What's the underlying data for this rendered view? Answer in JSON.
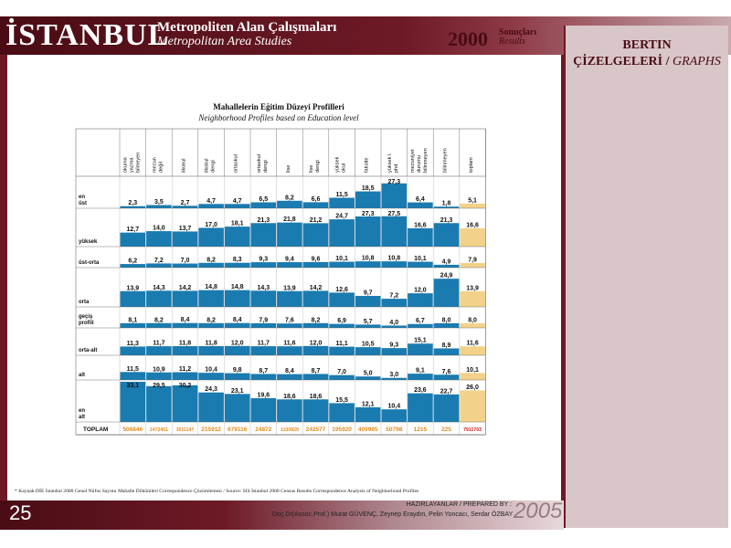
{
  "header": {
    "title": "İSTANBUL",
    "subtitle_tr": "Metropoliten Alan Çalışmaları",
    "subtitle_en": "Metropolitan Area Studies",
    "year": "2000",
    "results_tr": "Sonuçları",
    "results_en": "Results"
  },
  "side": {
    "title_line1": "BERTIN",
    "title_line2_tr": "ÇİZELGELERİ /",
    "title_line2_en": "GRAPHS"
  },
  "footer": {
    "page_number": "25",
    "prepared_by": "HAZIRLAYANLAR / PREPARED BY :",
    "authors": "Doç.Dr(Assoc.Prof.) Murat GÜVENÇ, Zeynep Eraydın, Pelin Yoncacı, Serdar ÖZBAY",
    "year": "2005"
  },
  "source": "* Kaynak:DİE İstanbul 2000 Genel Nüfus Sayımı Mahalle Dökümleri Correspondence Çözümlemesi / Source: SIS İstanbul 2000 Census Results Correspondence Analysis of Neighborhood Profiles",
  "colors": {
    "bar": "#1a7bb0",
    "total_bar": "#f2d28a",
    "accent": "#6d1a26",
    "total_text": "#e08a1e",
    "grand_total_text": "#cc2020"
  },
  "chart_data": {
    "type": "bertin-matrix",
    "title": "Mahallelerin Eğitim Düzeyi Profilleri",
    "subtitle": "Neighborhood Profiles based on Education level",
    "columns": [
      "okuma yazma bilmeyen",
      "mezun değil",
      "ilkokul",
      "ilkokul dengi",
      "ortaokul",
      "ortaokul dengi",
      "lise",
      "lise dengi",
      "yüksek okul",
      "fakülte",
      "yüksek l. phd",
      "mezuniyet durumu bilinmeyen",
      "bilinmeyen",
      "toplam"
    ],
    "rows": [
      {
        "name": "en üst",
        "values": [
          2.3,
          3.5,
          2.7,
          4.7,
          4.7,
          6.5,
          8.2,
          6.6,
          11.5,
          18.5,
          27.3,
          6.4,
          1.8,
          5.1
        ]
      },
      {
        "name": "yüksek",
        "values": [
          12.7,
          14.0,
          13.7,
          17.0,
          18.1,
          21.3,
          21.8,
          21.2,
          24.7,
          27.3,
          27.5,
          16.6,
          21.3,
          16.6
        ]
      },
      {
        "name": "üst-orta",
        "values": [
          6.2,
          7.2,
          7.0,
          8.2,
          8.3,
          9.3,
          9.4,
          9.6,
          10.1,
          10.8,
          10.8,
          10.1,
          4.9,
          7.9
        ]
      },
      {
        "name": "orta",
        "values": [
          13.9,
          14.3,
          14.2,
          14.8,
          14.8,
          14.3,
          13.9,
          14.2,
          12.6,
          9.7,
          7.2,
          12.0,
          24.9,
          13.9
        ]
      },
      {
        "name": "geçiş profili",
        "values": [
          8.1,
          8.2,
          8.4,
          8.2,
          8.4,
          7.9,
          7.6,
          8.2,
          6.9,
          5.7,
          4.0,
          6.7,
          8.0,
          8.0
        ]
      },
      {
        "name": "orta-alt",
        "values": [
          11.3,
          11.7,
          11.8,
          11.8,
          12.0,
          11.7,
          11.6,
          12.0,
          11.1,
          10.5,
          9.3,
          15.1,
          8.9,
          11.6
        ]
      },
      {
        "name": "alt",
        "values": [
          11.5,
          10.9,
          11.2,
          10.4,
          9.8,
          8.7,
          8.4,
          8.7,
          7.0,
          5.0,
          3.0,
          9.1,
          7.6,
          10.1
        ]
      },
      {
        "name": "en alt",
        "values": [
          33.1,
          29.5,
          30.2,
          24.3,
          23.1,
          19.6,
          18.6,
          18.6,
          15.5,
          12.1,
          10.4,
          23.6,
          22.7,
          26.0
        ]
      }
    ],
    "totals_label": "TOPLAM",
    "totals": [
      "506846",
      "1472451",
      "3011147",
      "215912",
      "679116",
      "24872",
      "1100829",
      "242577",
      "195920",
      "409995",
      "50798",
      "1215",
      "225",
      "7911703"
    ]
  }
}
